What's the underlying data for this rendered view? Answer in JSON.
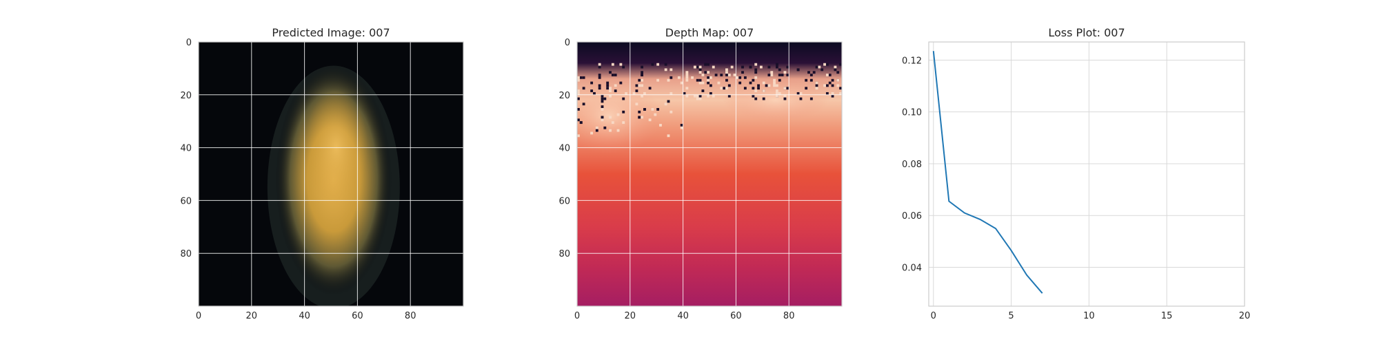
{
  "chart_data": [
    {
      "type": "heatmap",
      "title": "Predicted Image: 007",
      "xlim": [
        0,
        100
      ],
      "ylim": [
        100,
        0
      ],
      "xticks": [
        0,
        20,
        40,
        60,
        80
      ],
      "yticks": [
        0,
        20,
        40,
        60,
        80
      ],
      "grid": true,
      "image_description": "dark background with a glowing golden-yellow blob centered around x≈50, spanning y≈10 to 95",
      "colors": {
        "background": "#05070b",
        "glow": "#e0ac4a",
        "edge": "#2a3433"
      }
    },
    {
      "type": "heatmap",
      "title": "Depth Map: 007",
      "xlim": [
        0,
        100
      ],
      "ylim": [
        100,
        0
      ],
      "xticks": [
        0,
        20,
        40,
        60,
        80
      ],
      "yticks": [
        0,
        20,
        40,
        60,
        80
      ],
      "grid": true,
      "image_description": "dark top band with noisy speckles, pale peach band near y≈20, orange-red middle fading to magenta-crimson at the bottom",
      "colors": {
        "top": "#0b0b22",
        "light": "#f6c6a8",
        "mid": "#e8523a",
        "bottom": "#a51e62"
      }
    },
    {
      "type": "line",
      "title": "Loss Plot: 007",
      "xlim": [
        -0.3,
        20
      ],
      "ylim": [
        0.025,
        0.127
      ],
      "xticks": [
        0,
        5,
        10,
        15,
        20
      ],
      "yticks": [
        0.04,
        0.06,
        0.08,
        0.1,
        0.12
      ],
      "ytick_labels": [
        "0.04",
        "0.06",
        "0.08",
        "0.10",
        "0.12"
      ],
      "grid": true,
      "series": [
        {
          "x": [
            0,
            1,
            2,
            3,
            4,
            5,
            6,
            7
          ],
          "values": [
            0.1235,
            0.0655,
            0.061,
            0.0585,
            0.055,
            0.0465,
            0.037,
            0.03
          ],
          "color": "#1f77b4"
        }
      ]
    }
  ]
}
